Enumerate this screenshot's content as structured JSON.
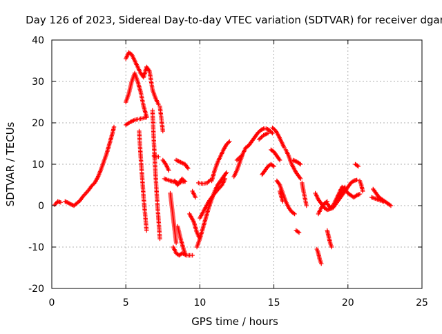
{
  "chart_data": {
    "type": "scatter",
    "title": "Day 126 of 2023, Sidereal Day-to-day VTEC variation (SDTVAR) for receiver dgar",
    "xlabel": "GPS time / hours",
    "ylabel": "SDTVAR / TECUs",
    "xlim": [
      0,
      25
    ],
    "ylim": [
      -20,
      40
    ],
    "xticks": [
      0,
      5,
      10,
      15,
      20,
      25
    ],
    "yticks": [
      -20,
      -10,
      0,
      10,
      20,
      30,
      40
    ],
    "grid": true,
    "marker": "+",
    "marker_color": "#ff0000",
    "segments": [
      [
        [
          0.2,
          0.2
        ],
        [
          0.4,
          1.0
        ],
        [
          0.6,
          0.8
        ]
      ],
      [
        [
          0.9,
          1.0
        ],
        [
          1.1,
          0.7
        ],
        [
          1.3,
          0.3
        ],
        [
          1.5,
          0.0
        ],
        [
          1.7,
          0.6
        ],
        [
          1.9,
          1.2
        ],
        [
          2.1,
          2.2
        ],
        [
          2.3,
          3.0
        ],
        [
          2.5,
          3.8
        ],
        [
          2.7,
          4.8
        ],
        [
          2.9,
          5.5
        ],
        [
          3.1,
          6.8
        ],
        [
          3.3,
          8.5
        ],
        [
          3.5,
          10.5
        ],
        [
          3.7,
          12.5
        ],
        [
          3.9,
          15.0
        ],
        [
          4.1,
          17.5
        ],
        [
          4.2,
          19.0
        ]
      ],
      [
        [
          5.0,
          19.5
        ],
        [
          5.3,
          20.2
        ],
        [
          5.6,
          20.7
        ],
        [
          6.0,
          21.0
        ],
        [
          6.4,
          21.3
        ]
      ],
      [
        [
          5.0,
          25.0
        ],
        [
          5.2,
          27.0
        ],
        [
          5.4,
          30.0
        ],
        [
          5.6,
          32.0
        ],
        [
          5.8,
          30.0
        ],
        [
          6.0,
          27.5
        ],
        [
          6.2,
          24.0
        ],
        [
          6.4,
          21.5
        ]
      ],
      [
        [
          5.0,
          35.5
        ],
        [
          5.2,
          37.0
        ],
        [
          5.4,
          36.5
        ],
        [
          5.6,
          35.0
        ],
        [
          5.8,
          33.5
        ],
        [
          6.0,
          32.0
        ],
        [
          6.2,
          31.0
        ],
        [
          6.4,
          33.5
        ],
        [
          6.6,
          32.5
        ],
        [
          6.8,
          28.0
        ],
        [
          7.0,
          26.0
        ],
        [
          7.2,
          24.5
        ]
      ],
      [
        [
          7.3,
          24.0
        ],
        [
          7.5,
          18.0
        ]
      ],
      [
        [
          5.9,
          18.0
        ],
        [
          6.0,
          12.0
        ],
        [
          6.1,
          7.0
        ],
        [
          6.2,
          2.0
        ],
        [
          6.3,
          -2.0
        ],
        [
          6.4,
          -6.0
        ]
      ],
      [
        [
          6.8,
          23.0
        ],
        [
          6.9,
          15.0
        ],
        [
          7.0,
          8.0
        ],
        [
          7.1,
          2.0
        ],
        [
          7.2,
          -3.0
        ],
        [
          7.3,
          -8.0
        ]
      ],
      [
        [
          6.9,
          12.0
        ],
        [
          7.2,
          11.8
        ]
      ],
      [
        [
          7.5,
          11.0
        ],
        [
          7.7,
          10.0
        ],
        [
          7.9,
          8.5
        ]
      ],
      [
        [
          7.6,
          6.5
        ],
        [
          8.0,
          6.0
        ],
        [
          8.5,
          5.5
        ],
        [
          9.0,
          5.8
        ]
      ],
      [
        [
          8.0,
          3.0
        ],
        [
          8.1,
          0.0
        ],
        [
          8.2,
          -3.0
        ],
        [
          8.3,
          -6.0
        ],
        [
          8.4,
          -9.0
        ]
      ],
      [
        [
          8.4,
          11.0
        ],
        [
          8.7,
          10.5
        ],
        [
          9.0,
          10.0
        ],
        [
          9.2,
          9.0
        ]
      ],
      [
        [
          8.3,
          6.0
        ],
        [
          8.5,
          5.0
        ],
        [
          8.8,
          6.5
        ],
        [
          9.0,
          5.8
        ]
      ],
      [
        [
          8.2,
          -10.0
        ],
        [
          8.4,
          -11.5
        ],
        [
          8.6,
          -12.0
        ],
        [
          8.8,
          -11.5
        ],
        [
          9.1,
          -12.0
        ],
        [
          9.5,
          -12.0
        ]
      ],
      [
        [
          8.5,
          -5.0
        ],
        [
          8.7,
          -8.0
        ],
        [
          8.9,
          -10.5
        ],
        [
          9.0,
          -11.5
        ]
      ],
      [
        [
          9.3,
          -2.0
        ],
        [
          9.6,
          -4.0
        ],
        [
          9.8,
          -6.5
        ],
        [
          10.0,
          -8.0
        ]
      ],
      [
        [
          9.5,
          3.5
        ],
        [
          9.7,
          2.0
        ]
      ],
      [
        [
          9.8,
          -10.0
        ],
        [
          10.0,
          -8.0
        ],
        [
          10.2,
          -5.5
        ],
        [
          10.4,
          -3.0
        ],
        [
          10.6,
          -0.5
        ],
        [
          10.8,
          1.5
        ],
        [
          11.0,
          3.5
        ],
        [
          11.2,
          5.0
        ],
        [
          11.4,
          6.0
        ],
        [
          11.6,
          7.0
        ],
        [
          11.8,
          8.0
        ]
      ],
      [
        [
          10.0,
          -3.0
        ],
        [
          10.3,
          -1.0
        ],
        [
          10.6,
          1.0
        ],
        [
          10.9,
          2.5
        ],
        [
          11.2,
          3.8
        ],
        [
          11.5,
          5.0
        ],
        [
          11.7,
          6.5
        ]
      ],
      [
        [
          9.9,
          5.5
        ],
        [
          10.2,
          5.3
        ],
        [
          10.5,
          5.5
        ],
        [
          10.7,
          6.2
        ]
      ],
      [
        [
          10.8,
          6.0
        ],
        [
          11.0,
          8.5
        ],
        [
          11.2,
          10.5
        ],
        [
          11.4,
          12.0
        ],
        [
          11.6,
          13.5
        ],
        [
          11.8,
          14.8
        ],
        [
          12.0,
          15.5
        ]
      ],
      [
        [
          12.3,
          7.0
        ],
        [
          12.5,
          8.5
        ],
        [
          12.7,
          10.5
        ],
        [
          12.9,
          12.5
        ],
        [
          13.1,
          14.0
        ],
        [
          13.3,
          14.5
        ],
        [
          13.5,
          15.5
        ],
        [
          13.7,
          16.5
        ],
        [
          13.9,
          17.5
        ],
        [
          14.1,
          18.2
        ],
        [
          14.3,
          18.6
        ],
        [
          14.5,
          18.6
        ],
        [
          14.7,
          18.2
        ],
        [
          14.9,
          17.5
        ]
      ],
      [
        [
          12.5,
          11.0
        ],
        [
          12.8,
          12.0
        ]
      ],
      [
        [
          14.0,
          16.0
        ],
        [
          14.3,
          17.0
        ],
        [
          14.6,
          17.5
        ]
      ],
      [
        [
          14.8,
          13.5
        ],
        [
          15.0,
          13.0
        ],
        [
          15.2,
          12.0
        ],
        [
          15.4,
          11.0
        ]
      ],
      [
        [
          14.9,
          18.8
        ],
        [
          15.1,
          18.2
        ],
        [
          15.3,
          17.0
        ],
        [
          15.5,
          15.5
        ],
        [
          15.7,
          14.0
        ]
      ],
      [
        [
          14.2,
          7.5
        ],
        [
          14.4,
          8.5
        ],
        [
          14.6,
          9.5
        ],
        [
          14.8,
          10.0
        ],
        [
          15.0,
          9.5
        ]
      ],
      [
        [
          15.2,
          6.0
        ],
        [
          15.4,
          5.0
        ],
        [
          15.6,
          3.0
        ],
        [
          15.8,
          1.0
        ],
        [
          16.0,
          -0.5
        ],
        [
          16.2,
          -1.5
        ],
        [
          16.4,
          -2.0
        ]
      ],
      [
        [
          15.4,
          3.5
        ],
        [
          15.6,
          1.0
        ]
      ],
      [
        [
          15.8,
          13.5
        ],
        [
          16.0,
          12.0
        ],
        [
          16.2,
          10.0
        ],
        [
          16.5,
          8.0
        ],
        [
          16.8,
          6.5
        ]
      ],
      [
        [
          16.3,
          11.0
        ],
        [
          16.6,
          10.5
        ],
        [
          16.8,
          10.0
        ]
      ],
      [
        [
          16.9,
          5.5
        ],
        [
          17.0,
          3.5
        ],
        [
          17.2,
          0.0
        ]
      ],
      [
        [
          16.5,
          -6.0
        ],
        [
          16.7,
          -6.5
        ]
      ],
      [
        [
          17.8,
          3.0
        ],
        [
          18.0,
          1.5
        ],
        [
          18.2,
          0.5
        ],
        [
          18.4,
          -0.5
        ],
        [
          18.6,
          -1.0
        ],
        [
          18.8,
          -0.8
        ],
        [
          19.0,
          -0.5
        ],
        [
          19.2,
          0.5
        ],
        [
          19.4,
          1.5
        ],
        [
          19.6,
          2.5
        ],
        [
          19.8,
          3.5
        ],
        [
          20.0,
          4.5
        ],
        [
          20.2,
          5.5
        ],
        [
          20.4,
          6.0
        ],
        [
          20.6,
          6.2
        ]
      ],
      [
        [
          18.0,
          -2.0
        ],
        [
          18.2,
          -0.5
        ],
        [
          18.4,
          0.5
        ],
        [
          18.6,
          1.0
        ]
      ],
      [
        [
          18.6,
          0.5
        ],
        [
          18.8,
          -0.5
        ],
        [
          19.0,
          0.0
        ],
        [
          19.2,
          1.5
        ],
        [
          19.4,
          3.0
        ],
        [
          19.6,
          4.5
        ],
        [
          19.8,
          4.0
        ],
        [
          20.0,
          3.0
        ],
        [
          20.2,
          2.5
        ],
        [
          20.4,
          2.0
        ],
        [
          20.6,
          2.5
        ],
        [
          20.8,
          2.8
        ]
      ],
      [
        [
          18.6,
          -6.0
        ],
        [
          18.7,
          -7.5
        ],
        [
          18.8,
          -9.0
        ],
        [
          18.9,
          -10.0
        ]
      ],
      [
        [
          17.9,
          -10.5
        ],
        [
          18.0,
          -11.5
        ],
        [
          18.1,
          -13.0
        ],
        [
          18.2,
          -14.0
        ]
      ],
      [
        [
          19.4,
          2.0
        ],
        [
          19.6,
          3.5
        ],
        [
          19.8,
          4.5
        ]
      ],
      [
        [
          20.5,
          10.0
        ],
        [
          20.7,
          9.5
        ]
      ],
      [
        [
          20.8,
          6.0
        ],
        [
          20.9,
          5.0
        ],
        [
          21.0,
          3.5
        ]
      ],
      [
        [
          21.7,
          4.0
        ],
        [
          21.9,
          3.0
        ],
        [
          22.1,
          2.0
        ],
        [
          22.3,
          1.5
        ],
        [
          22.5,
          1.0
        ],
        [
          22.7,
          0.5
        ],
        [
          22.9,
          0.0
        ]
      ],
      [
        [
          21.6,
          2.0
        ],
        [
          22.0,
          1.5
        ],
        [
          22.4,
          1.0
        ]
      ]
    ]
  }
}
